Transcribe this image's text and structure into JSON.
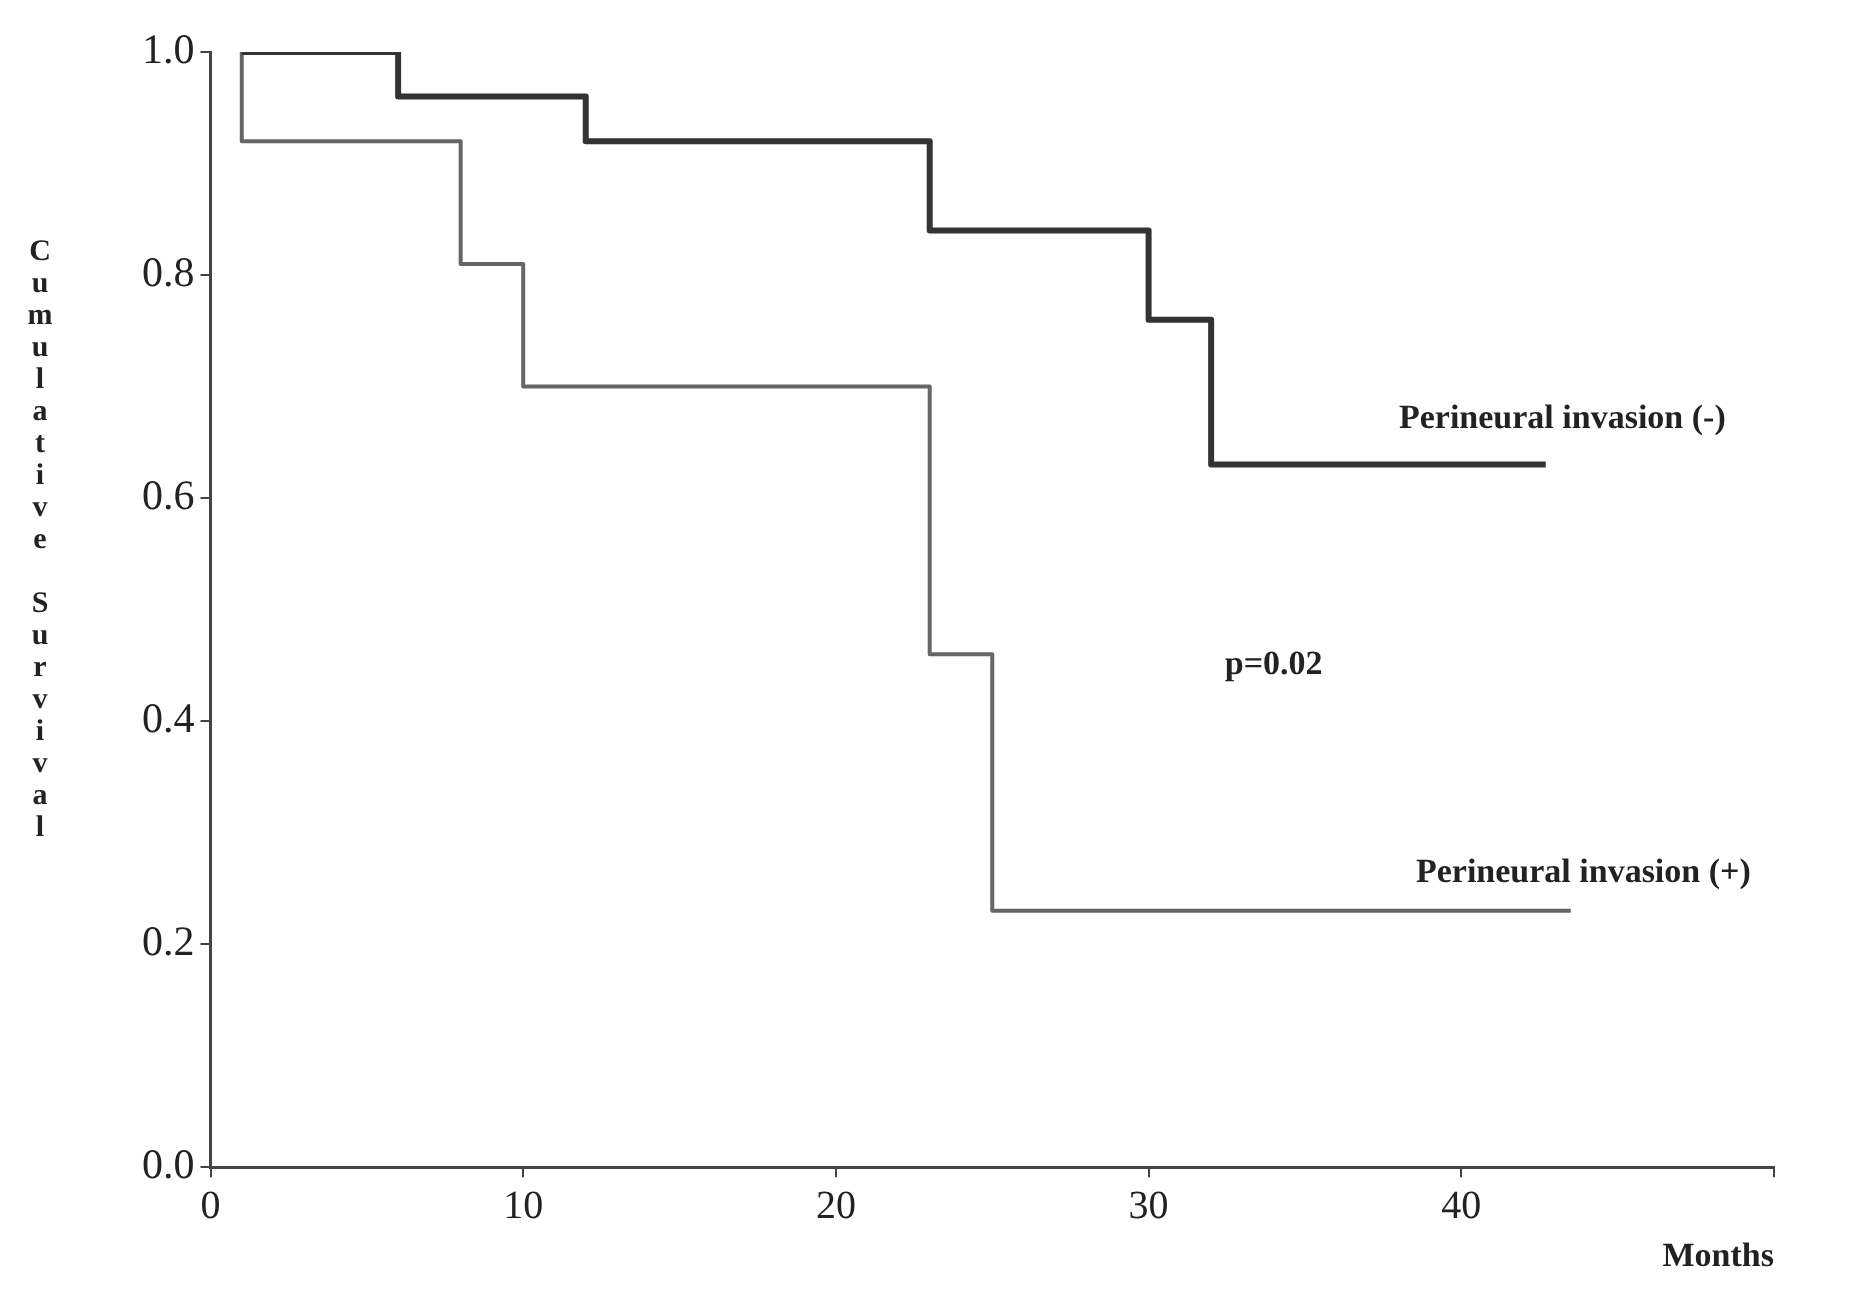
{
  "chart_data": {
    "type": "step",
    "ylabel": "Cumulative Survival",
    "xlabel": "Months",
    "annotations": [
      "p=0.02"
    ],
    "xlim": [
      0,
      50
    ],
    "xticks": [
      0,
      10,
      20,
      30,
      40,
      {
        "value": 50,
        "label": null
      }
    ],
    "ylim": [
      0,
      1
    ],
    "yticks": [
      {
        "value": 0,
        "label": "0.0"
      },
      {
        "value": 0.2,
        "label": "0.2"
      },
      {
        "value": 0.4,
        "label": "0.4"
      },
      {
        "value": 0.6,
        "label": "0.6"
      },
      {
        "value": 0.8,
        "label": "0.8"
      },
      {
        "value": 1,
        "label": "1.0"
      }
    ],
    "grid": false,
    "legend": false,
    "marker": "none",
    "series": [
      {
        "name": "Perineural invasion (-)",
        "color": "#333333",
        "x": [
          1,
          6,
          12,
          23,
          30,
          32,
          42.7
        ],
        "values": [
          1,
          0.96,
          0.92,
          0.84,
          0.76,
          0.63,
          0.63
        ]
      },
      {
        "name": "Perineural invasion (+)",
        "color": "#666666",
        "x": [
          1,
          1,
          8,
          10,
          23,
          25,
          43.5
        ],
        "values": [
          1,
          0.92,
          0.81,
          0.7,
          0.46,
          0.23,
          0.23
        ]
      }
    ]
  }
}
